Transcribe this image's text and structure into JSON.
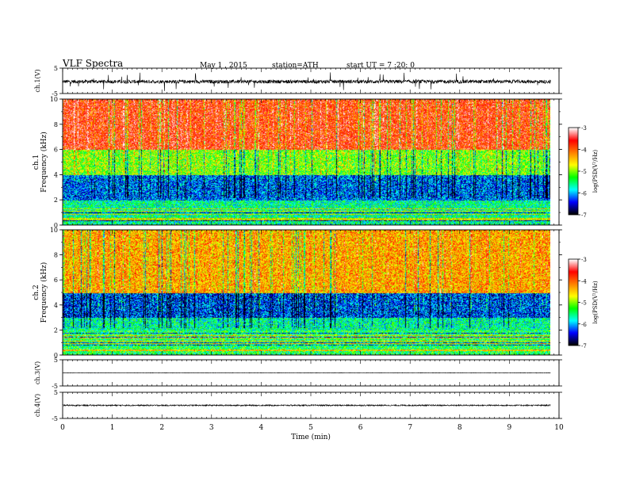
{
  "header": {
    "title": "VLF Spectra",
    "date": "May 1 , 2015",
    "station": "station=ATH",
    "start": "start UT = 7 :20: 0"
  },
  "chart_data": [
    {
      "panel": "ch1-waveform",
      "type": "line",
      "ylabel": "ch.1(V)",
      "ylim": [
        -5,
        5
      ],
      "y_ticks": [
        "5",
        "-5"
      ],
      "xlim": [
        0,
        10
      ],
      "x_end": 9.83,
      "mean": -0.3,
      "noise_amplitude": 0.7,
      "spike_amplitude": 3.8,
      "color": "#000000"
    },
    {
      "panel": "ch1-spectrogram",
      "type": "heatmap",
      "ylabel": "Frequency (kHz)",
      "channel_label": "ch.1",
      "ylim": [
        0,
        10
      ],
      "y_ticks": [
        "0",
        "2",
        "4",
        "6",
        "8",
        "10"
      ],
      "xlim": [
        0,
        10
      ],
      "x_end": 9.83,
      "colorbar_label": "log(PSD(V²/Hz)",
      "colorbar_ticks": [
        "-3",
        "-4",
        "-5",
        "-6",
        "-7"
      ],
      "colorbar_range": [
        -7,
        -3
      ],
      "colorbar_stops": [
        "#000000",
        "#0000ff",
        "#00ffff",
        "#00ff00",
        "#ffff00",
        "#ff8000",
        "#ff0000",
        "#ffffff"
      ],
      "dominant_level_by_freq": [
        {
          "from_khz": 0,
          "to_khz": 2,
          "level": -5.6
        },
        {
          "from_khz": 2,
          "to_khz": 4,
          "level": -6.2
        },
        {
          "from_khz": 4,
          "to_khz": 6,
          "level": -5.0
        },
        {
          "from_khz": 6,
          "to_khz": 10,
          "level": -3.7
        }
      ]
    },
    {
      "panel": "ch2-spectrogram",
      "type": "heatmap",
      "ylabel": "Frequency (kHz)",
      "channel_label": "ch.2",
      "ylim": [
        0,
        10
      ],
      "y_ticks": [
        "0",
        "2",
        "4",
        "6",
        "8",
        "10"
      ],
      "xlim": [
        0,
        10
      ],
      "x_end": 9.83,
      "colorbar_label": "log(PSD(V²/Hz)",
      "colorbar_ticks": [
        "-3",
        "-4",
        "-5",
        "-6",
        "-7"
      ],
      "colorbar_range": [
        -7,
        -3
      ],
      "colorbar_stops": [
        "#000000",
        "#0000ff",
        "#00ffff",
        "#00ff00",
        "#ffff00",
        "#ff8000",
        "#ff0000",
        "#ffffff"
      ],
      "dominant_level_by_freq": [
        {
          "from_khz": 0,
          "to_khz": 2,
          "level": -5.4
        },
        {
          "from_khz": 2,
          "to_khz": 3,
          "level": -5.6
        },
        {
          "from_khz": 3,
          "to_khz": 5,
          "level": -6.3
        },
        {
          "from_khz": 5,
          "to_khz": 10,
          "level": -4.3
        }
      ]
    },
    {
      "panel": "ch3-waveform",
      "type": "line",
      "ylabel": "ch.3(V)",
      "ylim": [
        -5,
        5
      ],
      "y_ticks": [
        "5",
        "-5"
      ],
      "xlim": [
        0,
        10
      ],
      "x_end": 9.83,
      "mean": 0.0,
      "noise_amplitude": 0.08,
      "color": "#000000"
    },
    {
      "panel": "ch4-waveform",
      "type": "line",
      "ylabel": "ch.4(V)",
      "ylim": [
        -5,
        5
      ],
      "y_ticks": [
        "5",
        "-5"
      ],
      "xlim": [
        0,
        10
      ],
      "x_end": 9.83,
      "mean": 0.0,
      "noise_amplitude": 0.25,
      "color": "#000000"
    }
  ],
  "x_axis": {
    "label": "Time (min)",
    "ticks": [
      "0",
      "1",
      "2",
      "3",
      "4",
      "5",
      "6",
      "7",
      "8",
      "9",
      "10"
    ]
  }
}
